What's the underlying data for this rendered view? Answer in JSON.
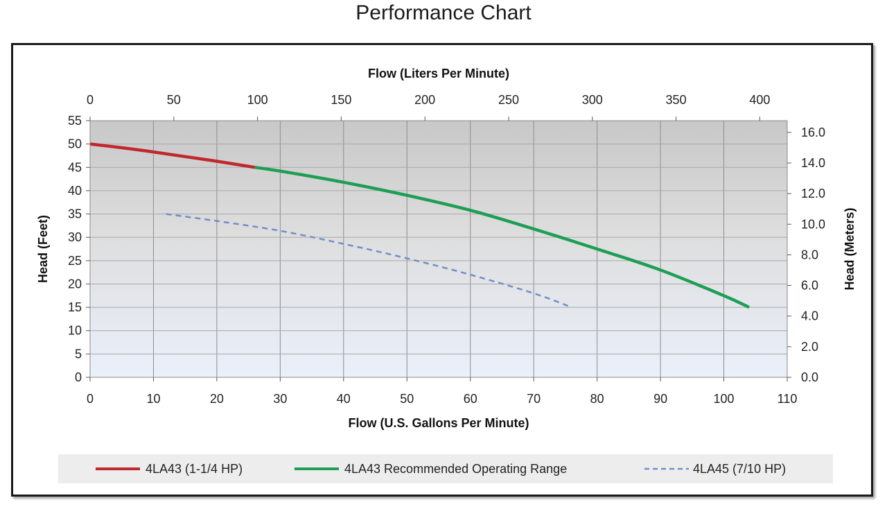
{
  "page_title": "Performance Chart",
  "chart_data": {
    "type": "line",
    "title": "",
    "x_bottom": {
      "label": "Flow (U.S. Gallons Per Minute)",
      "range": [
        0,
        110
      ],
      "ticks": [
        "0",
        "10",
        "20",
        "30",
        "40",
        "50",
        "60",
        "70",
        "80",
        "90",
        "100",
        "110"
      ]
    },
    "x_top": {
      "label": "Flow (Liters Per Minute)",
      "range": [
        0,
        416.4
      ],
      "ticks": [
        "0",
        "50",
        "100",
        "150",
        "200",
        "250",
        "300",
        "350",
        "400"
      ]
    },
    "y_left": {
      "label": "Head (Feet)",
      "range": [
        0,
        55
      ],
      "ticks": [
        "0",
        "5",
        "10",
        "15",
        "20",
        "25",
        "30",
        "35",
        "40",
        "45",
        "50",
        "55"
      ]
    },
    "y_right": {
      "label": "Head (Meters)",
      "range": [
        0,
        16.764
      ],
      "ticks": [
        "0.0",
        "2.0",
        "4.0",
        "6.0",
        "8.0",
        "10.0",
        "12.0",
        "14.0",
        "16.0"
      ]
    },
    "grid": true,
    "legend_position": "bottom",
    "series": [
      {
        "name": "4LA43 (1-1/4 HP)",
        "color": "#c0282d",
        "dash": "solid",
        "x": [
          0,
          5,
          10,
          15,
          20,
          26
        ],
        "y": [
          50,
          49.2,
          48.3,
          47.3,
          46.3,
          45
        ]
      },
      {
        "name": "4LA43 Recommended Operating Range",
        "color": "#1e9e55",
        "dash": "solid",
        "x": [
          26,
          30,
          40,
          50,
          60,
          70,
          80,
          90,
          100,
          104
        ],
        "y": [
          45,
          44.2,
          41.8,
          39,
          35.8,
          31.8,
          27.5,
          23,
          17.5,
          15
        ]
      },
      {
        "name": "4LA45 (7/10 HP)",
        "color": "#6f8fc9",
        "dash": "dashed",
        "x": [
          12,
          20,
          30,
          40,
          50,
          60,
          70,
          76
        ],
        "y": [
          35,
          33.5,
          31.4,
          28.6,
          25.5,
          22,
          18,
          15
        ]
      }
    ]
  }
}
